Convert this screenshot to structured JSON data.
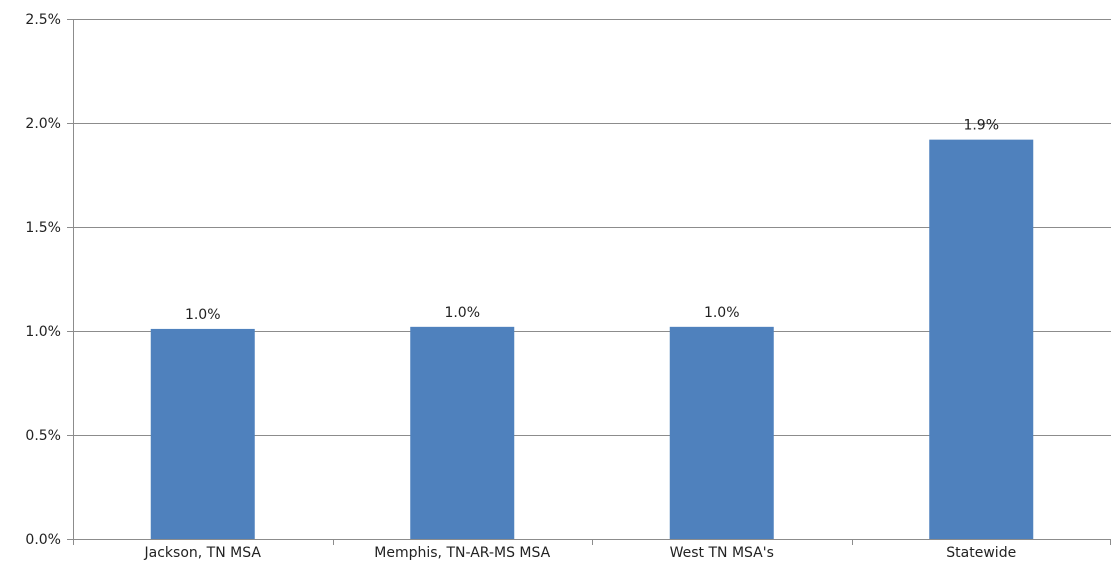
{
  "chart_data": {
    "type": "bar",
    "categories": [
      "Jackson, TN MSA",
      "Memphis, TN-AR-MS MSA",
      "West TN MSA's",
      "Statewide"
    ],
    "values": [
      1.01,
      1.02,
      1.02,
      1.92
    ],
    "data_labels": [
      "1.0%",
      "1.0%",
      "1.0%",
      "1.9%"
    ],
    "title": "",
    "xlabel": "",
    "ylabel": "",
    "ylim": [
      0,
      2.5
    ],
    "yticks": [
      0,
      0.5,
      1.0,
      1.5,
      2.0,
      2.5
    ],
    "ytick_labels": [
      "0.0%",
      "0.5%",
      "1.0%",
      "1.5%",
      "2.0%",
      "2.5%"
    ],
    "grid": true,
    "legend": "none",
    "bar_color": "#4f81bd",
    "grid_color": "#8c8c8c"
  }
}
